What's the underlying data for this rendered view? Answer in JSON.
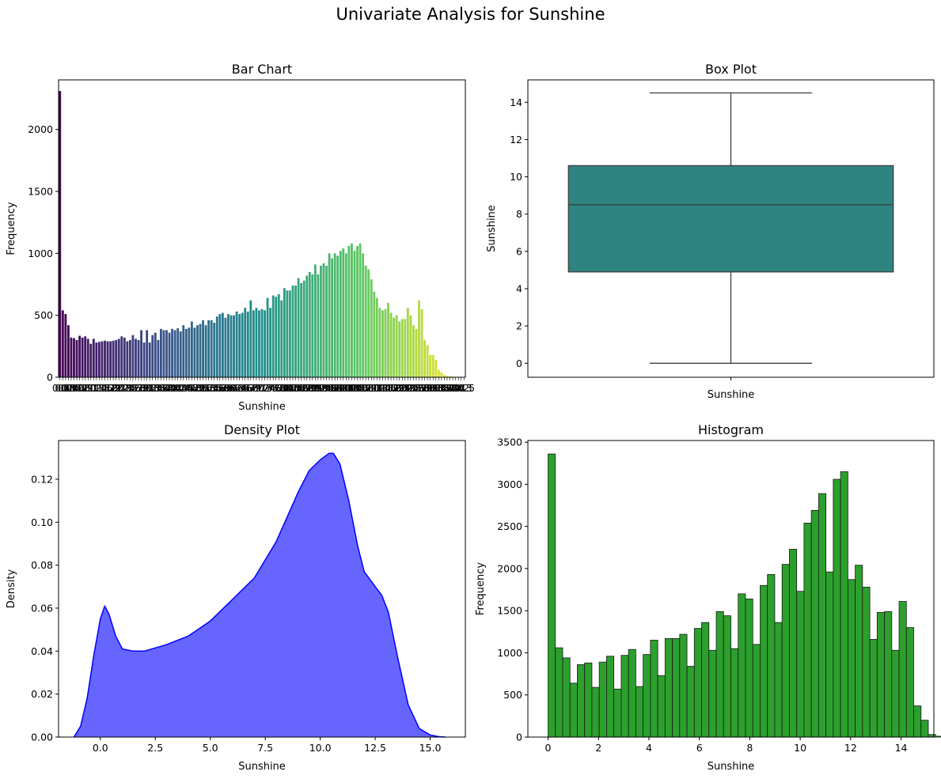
{
  "figure": {
    "suptitle": "Univariate Analysis for Sunshine"
  },
  "chart_data": [
    {
      "type": "bar",
      "title": "Bar Chart",
      "xlabel": "Sunshine",
      "ylabel": "Frequency",
      "ylim": [
        0,
        2400
      ],
      "yticks": [
        0,
        500,
        1000,
        1500,
        2000
      ],
      "tick_labels": [
        "0.0",
        "0.1",
        "0.2",
        "0.3",
        "0.4",
        "0.5",
        "0.6",
        "0.7",
        "0.8",
        "0.9",
        "1.0",
        "1.1",
        "1.2",
        "1.3",
        "1.4",
        "1.5",
        "1.6",
        "1.7",
        "1.8",
        "1.9",
        "2.0",
        "2.1",
        "2.2",
        "2.3",
        "2.4",
        "2.5",
        "2.6",
        "2.7",
        "2.8",
        "2.9",
        "3.0",
        "3.1",
        "3.2",
        "3.3",
        "3.4",
        "3.5",
        "3.6",
        "3.7",
        "3.8",
        "3.9",
        "4.0",
        "4.1",
        "4.2",
        "4.3",
        "4.4",
        "4.5",
        "4.6",
        "4.7",
        "4.8",
        "4.9",
        "5.0",
        "5.1",
        "5.2",
        "5.3",
        "5.4",
        "5.5",
        "5.6",
        "5.7",
        "5.8",
        "5.9",
        "6.0",
        "6.1",
        "6.2",
        "6.3",
        "6.4",
        "6.5",
        "6.6",
        "6.7",
        "6.8",
        "6.9",
        "7.0",
        "7.1",
        "7.2",
        "7.3",
        "7.4",
        "7.5",
        "7.6",
        "7.7",
        "7.8",
        "7.9",
        "8.0",
        "8.1",
        "8.2",
        "8.3",
        "8.4",
        "8.5",
        "8.6",
        "8.7",
        "8.8",
        "8.9",
        "9.0",
        "9.1",
        "9.2",
        "9.3",
        "9.4",
        "9.5",
        "9.6",
        "9.7",
        "9.8",
        "9.9",
        "10.0",
        "10.1",
        "10.2",
        "10.3",
        "10.4",
        "10.5",
        "10.6",
        "10.7",
        "10.8",
        "10.9",
        "11.0",
        "11.1",
        "11.2",
        "11.3",
        "11.4",
        "11.5",
        "11.6",
        "11.7",
        "11.8",
        "11.9",
        "12.0",
        "12.1",
        "12.2",
        "12.3",
        "12.4",
        "12.5",
        "12.6",
        "12.7",
        "12.8",
        "12.9",
        "13.0",
        "13.1",
        "13.2",
        "13.3",
        "13.4",
        "13.5",
        "13.6",
        "13.7",
        "13.8",
        "13.9",
        "14.0",
        "14.1",
        "14.2",
        "14.3",
        "14.5"
      ],
      "values": [
        2310,
        540,
        510,
        420,
        320,
        315,
        300,
        335,
        320,
        330,
        310,
        270,
        310,
        280,
        285,
        290,
        295,
        290,
        290,
        295,
        300,
        310,
        330,
        320,
        290,
        300,
        340,
        310,
        300,
        380,
        280,
        380,
        280,
        340,
        360,
        300,
        390,
        380,
        380,
        360,
        390,
        380,
        395,
        370,
        420,
        390,
        400,
        450,
        400,
        420,
        430,
        460,
        420,
        460,
        460,
        440,
        490,
        510,
        520,
        480,
        510,
        500,
        500,
        530,
        510,
        520,
        560,
        530,
        620,
        540,
        560,
        540,
        550,
        540,
        640,
        560,
        660,
        650,
        670,
        620,
        720,
        700,
        700,
        740,
        740,
        800,
        760,
        780,
        820,
        850,
        830,
        910,
        830,
        900,
        920,
        900,
        1000,
        960,
        1000,
        980,
        1020,
        1040,
        1000,
        1060,
        1080,
        1020,
        1060,
        1080,
        1000,
        900,
        870,
        790,
        690,
        640,
        560,
        540,
        550,
        600,
        520,
        480,
        500,
        450,
        470,
        470,
        560,
        500,
        420,
        390,
        620,
        550,
        300,
        260,
        180,
        180,
        140,
        60,
        40,
        20,
        10,
        8,
        5,
        3,
        2,
        1,
        1
      ],
      "palette": "viridis"
    },
    {
      "type": "box",
      "title": "Box Plot",
      "xlabel": "Sunshine",
      "ylabel": "Sunshine",
      "ylim": [
        -0.75,
        15.2
      ],
      "yticks": [
        0,
        2,
        4,
        6,
        8,
        10,
        12,
        14
      ],
      "min": 0.0,
      "q1": 4.9,
      "median": 8.5,
      "q3": 10.6,
      "max": 14.5,
      "color": "#2e8480"
    },
    {
      "type": "area",
      "title": "Density Plot",
      "xlabel": "Sunshine",
      "ylabel": "Density",
      "xlim": [
        -1.9,
        16.6
      ],
      "ylim": [
        0,
        0.138
      ],
      "xticks": [
        "0.0",
        "2.5",
        "5.0",
        "7.5",
        "10.0",
        "12.5",
        "15.0"
      ],
      "yticks": [
        "0.00",
        "0.02",
        "0.04",
        "0.06",
        "0.08",
        "0.10",
        "0.12"
      ],
      "x": [
        -1.2,
        -0.9,
        -0.6,
        -0.3,
        0.0,
        0.2,
        0.4,
        0.7,
        1.0,
        1.5,
        2.0,
        3.0,
        4.0,
        5.0,
        6.0,
        7.0,
        8.0,
        9.0,
        9.5,
        10.0,
        10.4,
        10.6,
        10.9,
        11.3,
        11.7,
        12.0,
        12.5,
        12.8,
        13.1,
        13.5,
        14.0,
        14.5,
        15.0,
        15.4,
        15.7
      ],
      "y": [
        0.0,
        0.005,
        0.018,
        0.038,
        0.055,
        0.061,
        0.057,
        0.047,
        0.041,
        0.04,
        0.04,
        0.043,
        0.047,
        0.054,
        0.064,
        0.074,
        0.091,
        0.114,
        0.124,
        0.129,
        0.132,
        0.132,
        0.127,
        0.11,
        0.089,
        0.077,
        0.07,
        0.066,
        0.058,
        0.038,
        0.015,
        0.004,
        0.001,
        0.0002,
        0.0
      ],
      "color": "#0000ff",
      "fill": "#6666ff"
    },
    {
      "type": "bar",
      "title": "Histogram",
      "xlabel": "Sunshine",
      "ylabel": "Frequency",
      "xlim": [
        -0.8,
        15.3
      ],
      "ylim": [
        0,
        3520
      ],
      "xticks": [
        0,
        2,
        4,
        6,
        8,
        10,
        12,
        14
      ],
      "yticks": [
        0,
        500,
        1000,
        1500,
        2000,
        2500,
        3000,
        3500
      ],
      "bin_start": 0.0,
      "bin_width": 0.29,
      "values": [
        3360,
        1060,
        940,
        640,
        860,
        880,
        590,
        890,
        960,
        570,
        970,
        1040,
        600,
        980,
        1150,
        730,
        1170,
        1170,
        1220,
        840,
        1290,
        1360,
        1030,
        1490,
        1440,
        1050,
        1700,
        1640,
        1100,
        1800,
        1930,
        1360,
        2050,
        2230,
        1730,
        2540,
        2690,
        2890,
        1960,
        3060,
        3150,
        1870,
        2040,
        1780,
        1160,
        1480,
        1490,
        1030,
        1610,
        1300,
        370,
        200,
        30,
        10
      ],
      "color": "#2ca02c"
    }
  ]
}
